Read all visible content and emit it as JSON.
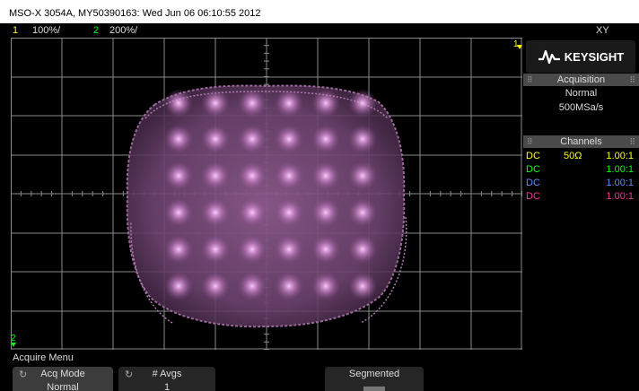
{
  "title": "MSO-X 3054A, MY50390163: Wed Jun 06 06:10:55 2012",
  "channel_bar": {
    "ch1_num": "1",
    "ch1_scale": "100%/",
    "ch2_num": "2",
    "ch2_scale": "200%/",
    "mode": "XY"
  },
  "markers": {
    "ch1": "1",
    "ch2": "2"
  },
  "brand": "KEYSIGHT",
  "acquisition": {
    "header": "Acquisition",
    "mode": "Normal",
    "rate": "500MSa/s"
  },
  "channels": {
    "header": "Channels",
    "rows": [
      {
        "coupling": "DC",
        "impedance": "50Ω",
        "ratio": "1.00:1",
        "color": "#ffff00"
      },
      {
        "coupling": "DC",
        "impedance": "",
        "ratio": "1.00:1",
        "color": "#00ff00"
      },
      {
        "coupling": "DC",
        "impedance": "",
        "ratio": "1.00:1",
        "color": "#5a8cff"
      },
      {
        "coupling": "DC",
        "impedance": "",
        "ratio": "1.00:1",
        "color": "#ff3399"
      }
    ]
  },
  "menu": {
    "title": "Acquire Menu",
    "softkeys": [
      {
        "label": "Acq Mode",
        "value": "Normal"
      },
      {
        "label": "# Avgs",
        "value": "1"
      },
      {
        "label": "Segmented",
        "value": ""
      }
    ]
  },
  "colors": {
    "trace": "#b070b0",
    "ch1": "#ffff00",
    "ch2": "#00ff00",
    "grid": "#8a8a8a"
  }
}
